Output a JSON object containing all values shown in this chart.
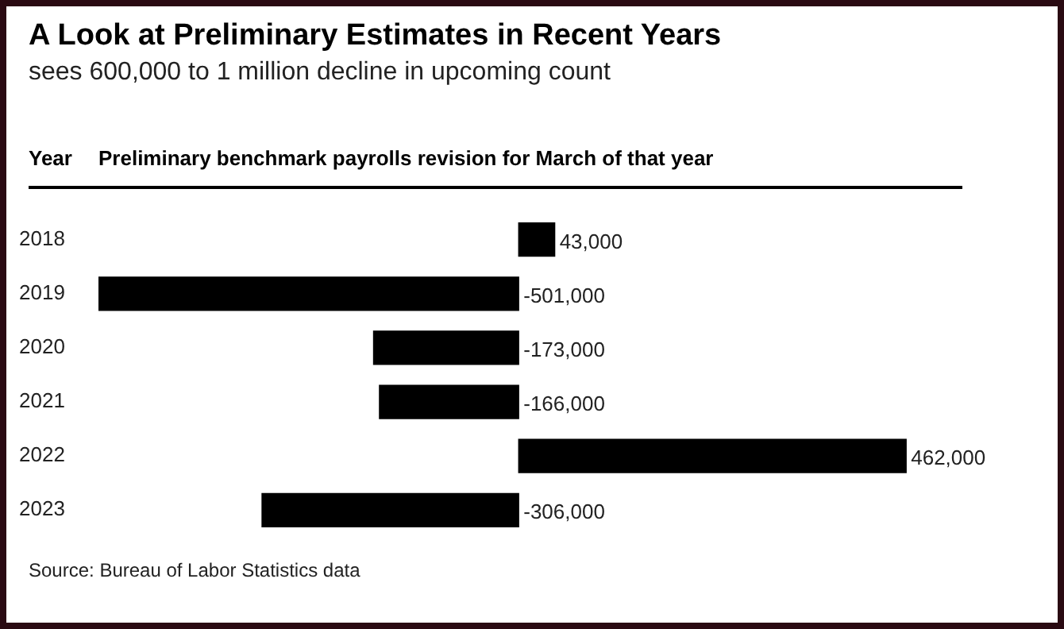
{
  "chart_data": {
    "type": "bar",
    "orientation": "horizontal",
    "title": "A Look at Preliminary Estimates in Recent Years",
    "subtitle": "sees 600,000 to 1 million decline in upcoming count",
    "ylabel": "Year",
    "xlabel": "Preliminary benchmark payrolls revision for March of that year",
    "categories": [
      "2018",
      "2019",
      "2020",
      "2021",
      "2022",
      "2023"
    ],
    "values": [
      43000,
      -501000,
      -173000,
      -166000,
      462000,
      -306000
    ],
    "color": "#000000",
    "value_labels": [
      "43,000",
      "-501,000",
      "-173,000",
      "-166,000",
      "462,000",
      "-306,000"
    ],
    "grid": false,
    "legend": false,
    "annotations": [
      "Source: Bureau of Labor Statistics data"
    ]
  }
}
